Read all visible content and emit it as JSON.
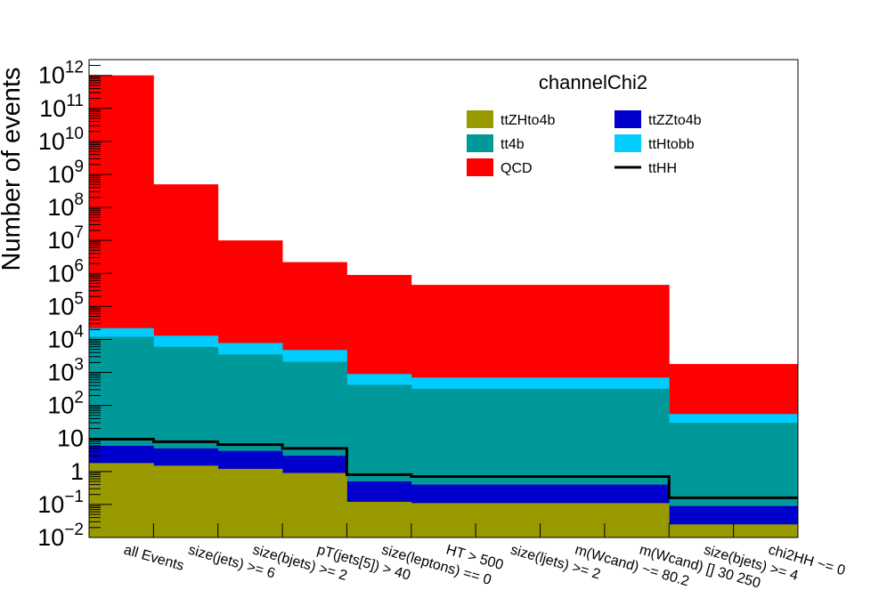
{
  "chart_data": {
    "type": "stacked-histogram",
    "title": "channelChi2",
    "ylabel": "Number of events",
    "xlabel": "",
    "yscale": "log",
    "ylim": [
      0.01,
      3000000000000.0
    ],
    "categories": [
      "all Events",
      "size(jets) >= 6",
      "size(bjets) >= 2",
      "pT(jets[5]) > 40",
      "size(leptons) == 0",
      "HT > 500",
      "size(ljets) >= 2",
      "m(Wcand) ~= 80.2",
      "m(Wcand) [] 30 250",
      "size(bjets) >= 4",
      "chi2HH ~= 0"
    ],
    "y_tick_labels": [
      {
        "value": 0.01,
        "base": "10",
        "exp": "−2"
      },
      {
        "value": 0.1,
        "base": "10",
        "exp": "−1"
      },
      {
        "value": 1,
        "base": "1",
        "exp": ""
      },
      {
        "value": 10,
        "base": "10",
        "exp": ""
      },
      {
        "value": 100,
        "base": "10",
        "exp": "2"
      },
      {
        "value": 1000,
        "base": "10",
        "exp": "3"
      },
      {
        "value": 10000,
        "base": "10",
        "exp": "4"
      },
      {
        "value": 100000,
        "base": "10",
        "exp": "5"
      },
      {
        "value": 1000000,
        "base": "10",
        "exp": "6"
      },
      {
        "value": 10000000,
        "base": "10",
        "exp": "7"
      },
      {
        "value": 100000000,
        "base": "10",
        "exp": "8"
      },
      {
        "value": 1000000000,
        "base": "10",
        "exp": "9"
      },
      {
        "value": 10000000000,
        "base": "10",
        "exp": "10"
      },
      {
        "value": 100000000000,
        "base": "10",
        "exp": "11"
      },
      {
        "value": 1000000000000,
        "base": "10",
        "exp": "12"
      }
    ],
    "stack_cumulative": [
      {
        "name": "ttZHto4b",
        "color": "#999900",
        "values": [
          1.8,
          1.5,
          1.2,
          0.9,
          0.12,
          0.11,
          0.11,
          0.11,
          0.11,
          0.025,
          0.025
        ]
      },
      {
        "name": "ttZZto4b",
        "color": "#0000cc",
        "values": [
          6.0,
          5.0,
          4.2,
          3.0,
          0.5,
          0.4,
          0.4,
          0.4,
          0.4,
          0.09,
          0.09
        ]
      },
      {
        "name": "tt4b",
        "color": "#009999",
        "values": [
          12000,
          6000,
          3500,
          2100,
          420,
          320,
          320,
          320,
          320,
          30,
          30
        ]
      },
      {
        "name": "ttHtobb",
        "color": "#00ccff",
        "values": [
          22000,
          13000,
          7800,
          4800,
          900,
          700,
          700,
          700,
          700,
          55,
          55
        ]
      },
      {
        "name": "QCD",
        "color": "#ff0000",
        "values": [
          1000000000000.0,
          500000000.0,
          10000000.0,
          2200000.0,
          900000.0,
          450000.0,
          450000.0,
          450000.0,
          450000.0,
          1800,
          1800
        ]
      }
    ],
    "overlay": {
      "name": "ttHH",
      "color": "#000000",
      "values": [
        9.5,
        8.0,
        6.5,
        5.0,
        0.8,
        0.7,
        0.7,
        0.7,
        0.7,
        0.16,
        0.16
      ]
    },
    "legend": {
      "placement": "top-right",
      "entries": [
        {
          "name": "ttZHto4b",
          "color": "#999900",
          "kind": "box"
        },
        {
          "name": "ttZZto4b",
          "color": "#0000cc",
          "kind": "box"
        },
        {
          "name": "tt4b",
          "color": "#009999",
          "kind": "box"
        },
        {
          "name": "ttHtobb",
          "color": "#00ccff",
          "kind": "box"
        },
        {
          "name": "QCD",
          "color": "#ff0000",
          "kind": "box"
        },
        {
          "name": "ttHH",
          "color": "#000000",
          "kind": "line"
        }
      ]
    }
  }
}
